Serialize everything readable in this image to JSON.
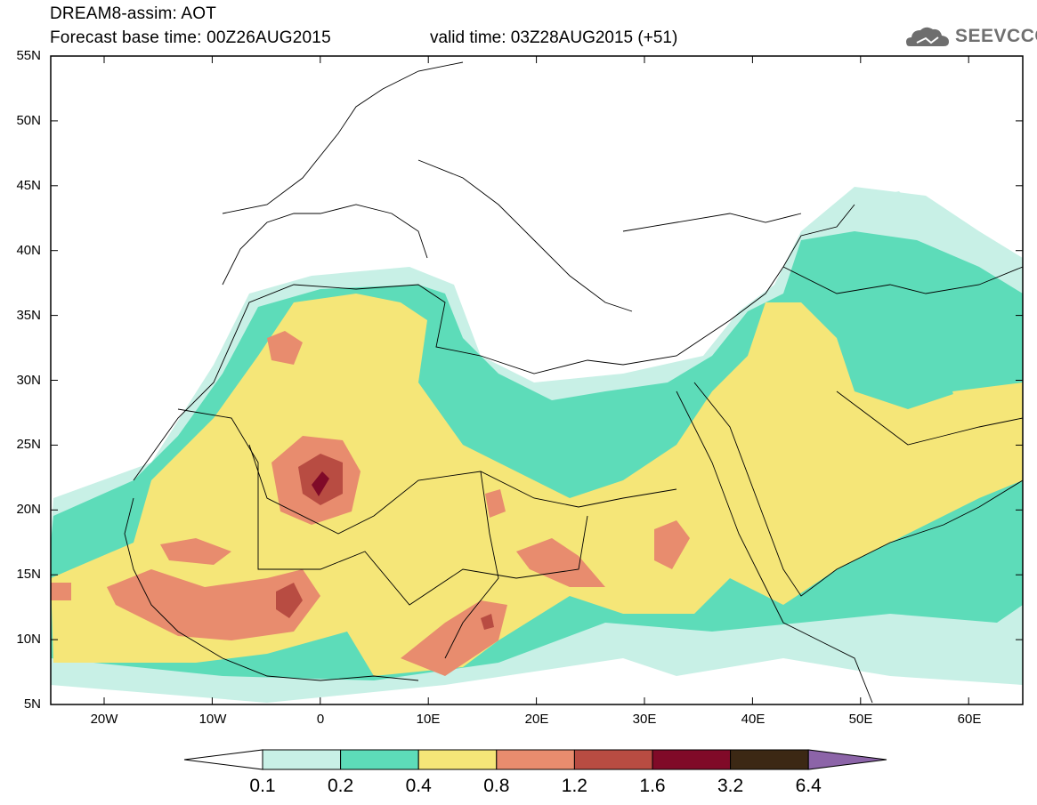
{
  "header": {
    "title": "DREAM8-assim: AOT",
    "base_time": "Forecast base time: 00Z26AUG2015",
    "valid_time": "valid time: 03Z28AUG2015 (+51)"
  },
  "logo": {
    "text": "SEEVCCC",
    "icon": "cloud-logo-icon"
  },
  "axes": {
    "lat_labels": [
      "55N",
      "50N",
      "45N",
      "40N",
      "35N",
      "30N",
      "25N",
      "20N",
      "15N",
      "10N",
      "5N"
    ],
    "lon_labels": [
      "20W",
      "10W",
      "0",
      "10E",
      "20E",
      "30E",
      "40E",
      "50E",
      "60E"
    ]
  },
  "colorbar": {
    "labels": [
      "0.1",
      "0.2",
      "0.4",
      "0.8",
      "1.2",
      "1.6",
      "3.2",
      "6.4"
    ],
    "colors": [
      "#ffffff",
      "#c8f0e6",
      "#5ddcb9",
      "#f5e678",
      "#e88c6e",
      "#b84c42",
      "#800a28",
      "#3c2814",
      "#8c64a8"
    ]
  }
}
